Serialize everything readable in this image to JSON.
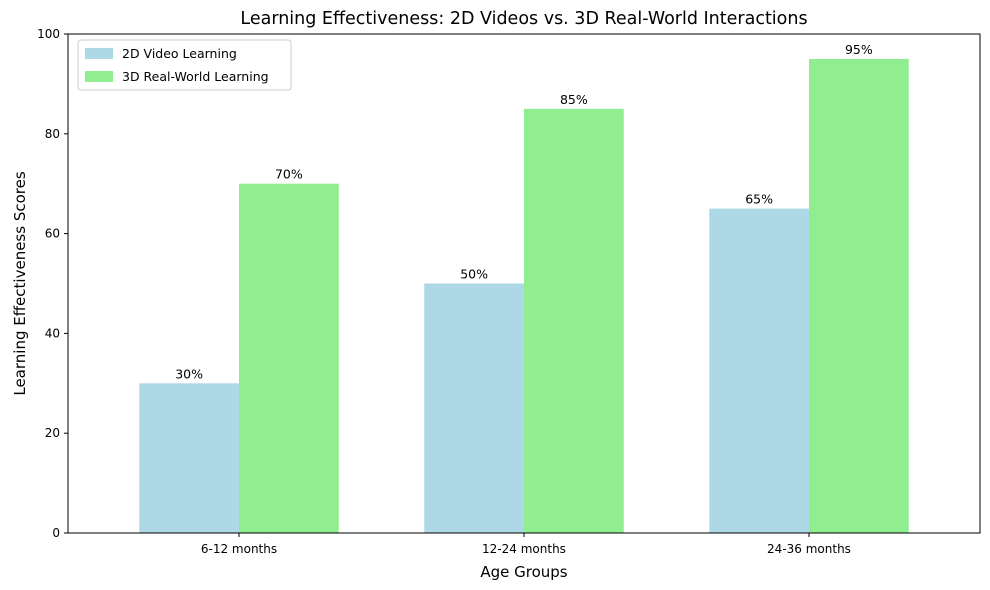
{
  "chart_data": {
    "type": "bar",
    "title": "Learning Effectiveness: 2D Videos vs. 3D Real-World Interactions",
    "xlabel": "Age Groups",
    "ylabel": "Learning Effectiveness Scores",
    "categories": [
      "6-12 months",
      "12-24 months",
      "24-36 months"
    ],
    "series": [
      {
        "name": "2D Video Learning",
        "values": [
          30,
          50,
          65
        ],
        "labels": [
          "30%",
          "50%",
          "65%"
        ],
        "color": "#add8e6"
      },
      {
        "name": "3D Real-World Learning",
        "values": [
          70,
          85,
          95
        ],
        "labels": [
          "70%",
          "85%",
          "95%"
        ],
        "color": "#90ee90"
      }
    ],
    "ylim": [
      0,
      100
    ],
    "yticks": [
      0,
      20,
      40,
      60,
      80,
      100
    ],
    "grid": false,
    "legend_position": "top-left"
  }
}
